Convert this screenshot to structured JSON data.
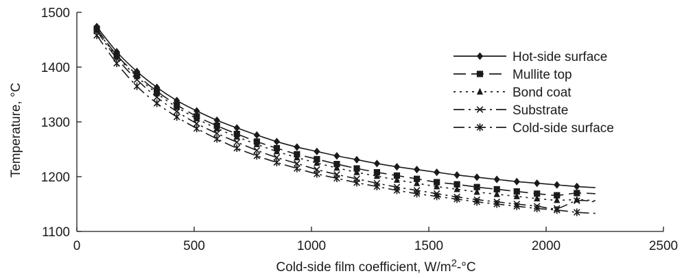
{
  "chart_data": {
    "type": "line",
    "title": "",
    "xlabel": "Cold-side film coefficient, W/m",
    "xlabel_superscript": "2",
    "xlabel_suffix": "-°C",
    "ylabel": "Temperature, °C",
    "xlim": [
      0,
      2500
    ],
    "ylim": [
      1100,
      1500
    ],
    "xticks": [
      0,
      500,
      1000,
      1500,
      2000,
      2500
    ],
    "yticks": [
      1100,
      1200,
      1300,
      1400,
      1500
    ],
    "grid": false,
    "legend_position": "top-right",
    "marker_x": [
      85,
      170,
      256,
      341,
      426,
      511,
      597,
      682,
      767,
      852,
      938,
      1023,
      1108,
      1193,
      1279,
      1364,
      1449,
      1534,
      1620,
      1705,
      1790,
      1875,
      1961,
      2046,
      2131
    ],
    "series": [
      {
        "name": "Hot-side surface",
        "marker": "diamond",
        "dash": "",
        "color": "#1a1a1a",
        "values": [
          1474,
          1428,
          1392,
          1363,
          1339,
          1320,
          1303,
          1289,
          1276,
          1264,
          1254,
          1246,
          1238,
          1231,
          1224,
          1218,
          1213,
          1208,
          1203,
          1199,
          1195,
          1191,
          1188,
          1185,
          1182
        ],
        "line_end": [
          2210,
          1180
        ]
      },
      {
        "name": "Mullite top",
        "marker": "square",
        "dash": "18 8",
        "color": "#1a1a1a",
        "values": [
          1470,
          1422,
          1386,
          1356,
          1331,
          1310,
          1293,
          1278,
          1264,
          1252,
          1241,
          1232,
          1223,
          1215,
          1208,
          1202,
          1196,
          1190,
          1186,
          1181,
          1177,
          1173,
          1169,
          1166,
          1170
        ],
        "line_end": [
          2210,
          1169
        ]
      },
      {
        "name": "Bond coat",
        "marker": "triangle",
        "dash": "3 6",
        "color": "#1a1a1a",
        "values": [
          1468,
          1420,
          1383,
          1352,
          1327,
          1306,
          1288,
          1273,
          1259,
          1246,
          1235,
          1225,
          1216,
          1208,
          1201,
          1194,
          1188,
          1182,
          1177,
          1172,
          1168,
          1164,
          1160,
          1157,
          1158
        ],
        "line_end": [
          2210,
          1156
        ]
      },
      {
        "name": "Substrate",
        "marker": "x",
        "dash": "16 6 3 6",
        "color": "#1a1a1a",
        "values": [
          1466,
          1416,
          1377,
          1345,
          1319,
          1297,
          1279,
          1263,
          1248,
          1235,
          1224,
          1213,
          1204,
          1196,
          1188,
          1181,
          1175,
          1169,
          1163,
          1158,
          1154,
          1150,
          1146,
          1142,
          1156
        ],
        "line_end": [
          2210,
          1154
        ]
      },
      {
        "name": "Cold-side surface",
        "marker": "asterisk",
        "dash": "16 6 3 6",
        "color": "#1a1a1a",
        "values": [
          1458,
          1407,
          1365,
          1334,
          1309,
          1288,
          1269,
          1252,
          1238,
          1226,
          1215,
          1205,
          1197,
          1189,
          1182,
          1175,
          1169,
          1164,
          1159,
          1154,
          1150,
          1146,
          1142,
          1139,
          1135
        ],
        "line_end": [
          2210,
          1133
        ]
      }
    ]
  }
}
